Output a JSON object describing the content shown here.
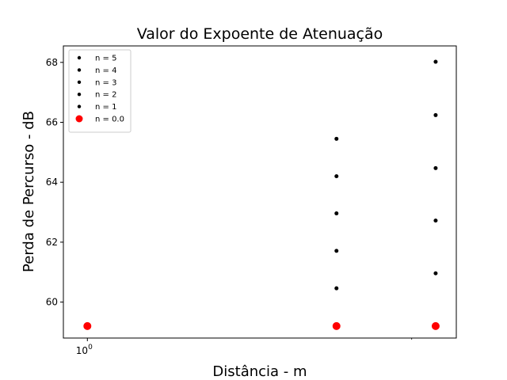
{
  "chart_data": {
    "type": "scatter",
    "title": "Valor do Expoente de Atenuação",
    "xlabel": "Distância - m",
    "ylabel": "Perda de Percurso - dB",
    "x_scale": "log",
    "xlim": [
      0.95,
      2.2
    ],
    "ylim": [
      58.8,
      68.55
    ],
    "y_ticks": [
      60,
      62,
      64,
      66,
      68
    ],
    "x_ticks": [
      1
    ],
    "x_tick_labels": [
      {
        "base": "10",
        "exp": "0"
      }
    ],
    "grid": false,
    "legend": "upper-left",
    "series": [
      {
        "name": "n = 5",
        "color": "#000000",
        "marker": "small",
        "points": [
          [
            1.703,
            65.45
          ],
          [
            2.105,
            68.02
          ]
        ]
      },
      {
        "name": "n = 4",
        "color": "#000000",
        "marker": "small",
        "points": [
          [
            1.703,
            64.2
          ],
          [
            2.105,
            66.24
          ]
        ]
      },
      {
        "name": "n = 3",
        "color": "#000000",
        "marker": "small",
        "points": [
          [
            1.703,
            62.96
          ],
          [
            2.105,
            64.47
          ]
        ]
      },
      {
        "name": "n = 2",
        "color": "#000000",
        "marker": "small",
        "points": [
          [
            1.703,
            61.71
          ],
          [
            2.105,
            62.72
          ]
        ]
      },
      {
        "name": "n = 1",
        "color": "#000000",
        "marker": "small",
        "points": [
          [
            1.703,
            60.46
          ],
          [
            2.105,
            60.96
          ]
        ]
      },
      {
        "name": "n = 0.0",
        "color": "#ff0000",
        "marker": "large",
        "points": [
          [
            1,
            59.2
          ],
          [
            1.703,
            59.2
          ],
          [
            2.105,
            59.2
          ]
        ]
      }
    ]
  }
}
